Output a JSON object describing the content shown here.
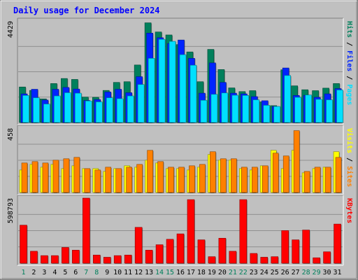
{
  "chart_data": [
    {
      "type": "bar",
      "title": "Daily usage for December 2024",
      "categories": [
        "1",
        "2",
        "3",
        "4",
        "5",
        "6",
        "7",
        "8",
        "9",
        "10",
        "11",
        "12",
        "13",
        "14",
        "15",
        "16",
        "17",
        "18",
        "19",
        "20",
        "21",
        "22",
        "23",
        "24",
        "25",
        "26",
        "27",
        "28",
        "29",
        "30",
        "31"
      ],
      "weekend_days": [
        "1",
        "7",
        "8",
        "14",
        "15",
        "21",
        "22",
        "28",
        "29"
      ],
      "max_label": "4429",
      "ylim": [
        0,
        4429
      ],
      "legend": [
        "Pages",
        "Files",
        "Hits"
      ],
      "series": [
        {
          "name": "Hits",
          "values": [
            1550,
            1400,
            1030,
            1700,
            1920,
            1880,
            1110,
            1100,
            1400,
            1750,
            1780,
            2510,
            4350,
            3950,
            3820,
            3400,
            3080,
            1780,
            3190,
            2310,
            1510,
            1350,
            1390,
            900,
            736,
            2300,
            1600,
            1430,
            1390,
            1500,
            1700
          ]
        },
        {
          "name": "Files",
          "values": [
            1250,
            1450,
            980,
            1450,
            1530,
            1460,
            960,
            1000,
            1330,
            1450,
            1300,
            2000,
            3900,
            3700,
            3450,
            3600,
            2800,
            1280,
            2600,
            1750,
            1280,
            1250,
            1130,
            950,
            700,
            2380,
            1180,
            1190,
            1100,
            1250,
            1480
          ]
        },
        {
          "name": "Pages",
          "values": [
            1180,
            1080,
            807,
            1160,
            1300,
            1280,
            940,
            900,
            1080,
            1040,
            1160,
            1660,
            2800,
            3630,
            3540,
            2960,
            2500,
            970,
            1230,
            1290,
            1190,
            1180,
            990,
            750,
            700,
            2050,
            1100,
            1200,
            1010,
            990,
            1420
          ]
        }
      ],
      "color": {
        "Hits": "#00805c",
        "Files": "#0024ff",
        "Pages": "#00e0ff"
      }
    },
    {
      "type": "bar",
      "max_label": "458",
      "ylim": [
        0,
        458
      ],
      "legend": [
        "Sites",
        "Visits"
      ],
      "series": [
        {
          "name": "Visits",
          "values": [
            160,
            200,
            180,
            200,
            170,
            190,
            170,
            170,
            150,
            170,
            190,
            180,
            230,
            210,
            170,
            170,
            160,
            180,
            270,
            230,
            230,
            170,
            160,
            190,
            300,
            170,
            300,
            140,
            170,
            180,
            290
          ]
        },
        {
          "name": "Sites",
          "values": [
            210,
            220,
            210,
            230,
            240,
            250,
            170,
            160,
            180,
            170,
            180,
            200,
            300,
            220,
            180,
            180,
            190,
            200,
            290,
            240,
            240,
            180,
            180,
            190,
            280,
            260,
            440,
            150,
            180,
            180,
            250
          ]
        }
      ],
      "color": {
        "Visits": "#ffff00",
        "Sites": "#ff8000"
      }
    },
    {
      "type": "bar",
      "max_label": "598793",
      "ylim": [
        0,
        598793
      ],
      "legend": [
        "KBytes"
      ],
      "series": [
        {
          "name": "KBytes",
          "values": [
            350000,
            110000,
            70000,
            70000,
            145000,
            120000,
            598793,
            75000,
            55000,
            70000,
            75000,
            330000,
            120000,
            170000,
            220000,
            270000,
            585000,
            215000,
            60000,
            230000,
            110000,
            585000,
            90000,
            55000,
            60000,
            300000,
            215000,
            305000,
            50000,
            105000,
            360000
          ]
        }
      ],
      "color": {
        "KBytes": "#ff0000"
      }
    }
  ]
}
